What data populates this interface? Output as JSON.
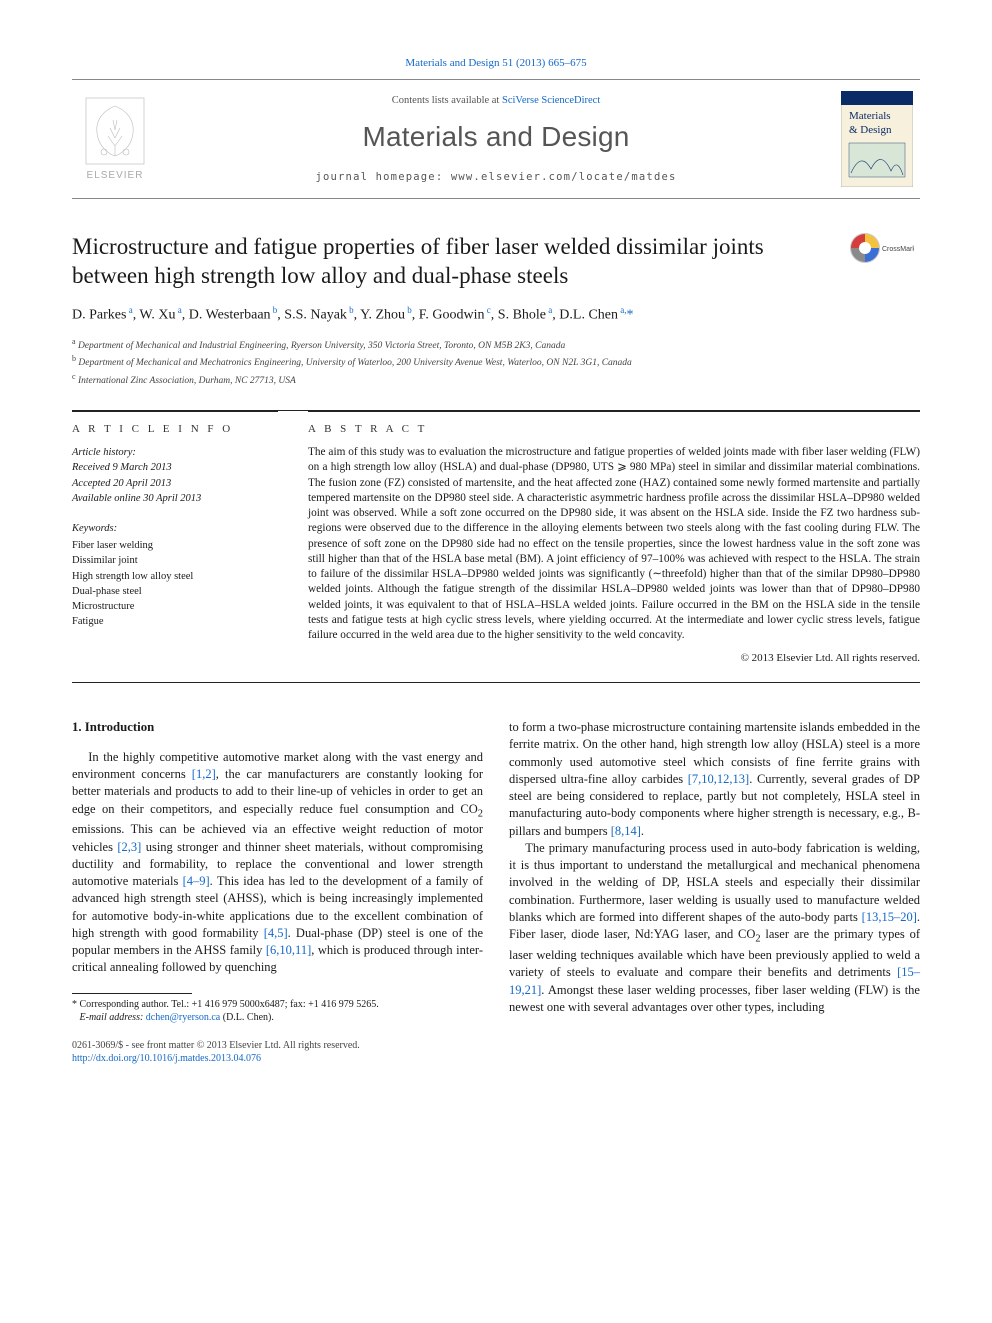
{
  "colors": {
    "link": "#1468c7",
    "text": "#1a1a1a",
    "muted": "#555555",
    "rule": "#222222",
    "bg": "#ffffff",
    "elsevier_orange": "#eb6b0b",
    "cover_blue": "#0b2b66",
    "cover_cream": "#f6f0dc",
    "crossmark_ring_outer": "#c9c9c9",
    "crossmark_red": "#d53d3d",
    "crossmark_yellow": "#f4c23c",
    "crossmark_blue": "#3a6fd6",
    "crossmark_grey": "#8a8a8a"
  },
  "typography": {
    "body_family": "Times New Roman, serif",
    "title_pt": 23,
    "journal_pt": 28,
    "body_pt": 12.5,
    "abstract_pt": 11.3,
    "small_pt": 10.5
  },
  "citation": {
    "prefix": "",
    "link_text": "Materials and Design 51 (2013) 665–675"
  },
  "header": {
    "contents_prefix": "Contents lists available at ",
    "contents_link": "SciVerse ScienceDirect",
    "journal": "Materials and Design",
    "homepage_prefix": "journal homepage: ",
    "homepage_url": "www.elsevier.com/locate/matdes"
  },
  "cover_thumb": {
    "line1": "Materials",
    "line2": "& Design"
  },
  "crossmark_label": "CrossMark",
  "title": "Microstructure and fatigue properties of fiber laser welded dissimilar joints between high strength low alloy and dual-phase steels",
  "authors_html": "D. Parkes<sup> a</sup>, W. Xu<sup> a</sup>, D. Westerbaan<sup> b</sup>, S.S. Nayak<sup> b</sup>, Y. Zhou<sup> b</sup>, F. Goodwin<sup> c</sup>, S. Bhole<sup> a</sup>, D.L. Chen<sup> a,</sup><a href=\"#\">*</a>",
  "affiliations": [
    {
      "sup": "a",
      "text": "Department of Mechanical and Industrial Engineering, Ryerson University, 350 Victoria Street, Toronto, ON M5B 2K3, Canada"
    },
    {
      "sup": "b",
      "text": "Department of Mechanical and Mechatronics Engineering, University of Waterloo, 200 University Avenue West, Waterloo, ON N2L 3G1, Canada"
    },
    {
      "sup": "c",
      "text": "International Zinc Association, Durham, NC 27713, USA"
    }
  ],
  "article_info": {
    "head": "A R T I C L E   I N F O",
    "history_label": "Article history:",
    "history": [
      "Received 9 March 2013",
      "Accepted 20 April 2013",
      "Available online 30 April 2013"
    ],
    "keywords_label": "Keywords:",
    "keywords": [
      "Fiber laser welding",
      "Dissimilar joint",
      "High strength low alloy steel",
      "Dual-phase steel",
      "Microstructure",
      "Fatigue"
    ]
  },
  "abstract": {
    "head": "A B S T R A C T",
    "text": "The aim of this study was to evaluation the microstructure and fatigue properties of welded joints made with fiber laser welding (FLW) on a high strength low alloy (HSLA) and dual-phase (DP980, UTS ⩾ 980 MPa) steel in similar and dissimilar material combinations. The fusion zone (FZ) consisted of martensite, and the heat affected zone (HAZ) contained some newly formed martensite and partially tempered martensite on the DP980 steel side. A characteristic asymmetric hardness profile across the dissimilar HSLA–DP980 welded joint was observed. While a soft zone occurred on the DP980 side, it was absent on the HSLA side. Inside the FZ two hardness sub-regions were observed due to the difference in the alloying elements between two steels along with the fast cooling during FLW. The presence of soft zone on the DP980 side had no effect on the tensile properties, since the lowest hardness value in the soft zone was still higher than that of the HSLA base metal (BM). A joint efficiency of 97–100% was achieved with respect to the HSLA. The strain to failure of the dissimilar HSLA–DP980 welded joints was significantly (∼threefold) higher than that of the similar DP980–DP980 welded joints. Although the fatigue strength of the dissimilar HSLA–DP980 welded joints was lower than that of DP980–DP980 welded joints, it was equivalent to that of HSLA–HSLA welded joints. Failure occurred in the BM on the HSLA side in the tensile tests and fatigue tests at high cyclic stress levels, where yielding occurred. At the intermediate and lower cyclic stress levels, fatigue failure occurred in the weld area due to the higher sensitivity to the weld concavity.",
    "copyright": "© 2013 Elsevier Ltd. All rights reserved."
  },
  "section1": {
    "heading": "1. Introduction",
    "col1_para": "In the highly competitive automotive market along with the vast energy and environment concerns <a href=\"#\">[1,2]</a>, the car manufacturers are constantly looking for better materials and products to add to their line-up of vehicles in order to get an edge on their competitors, and especially reduce fuel consumption and CO<sub>2</sub> emissions. This can be achieved via an effective weight reduction of motor vehicles <a href=\"#\">[2,3]</a> using stronger and thinner sheet materials, without compromising ductility and formability, to replace the conventional and lower strength automotive materials <a href=\"#\">[4–9]</a>. This idea has led to the development of a family of advanced high strength steel (AHSS), which is being increasingly implemented for automotive body-in-white applications due to the excellent combination of high strength with good formability <a href=\"#\">[4,5]</a>. Dual-phase (DP) steel is one of the popular members in the AHSS family <a href=\"#\">[6,10,11]</a>, which is produced through inter-critical annealing followed by quenching",
    "col2_para1": "to form a two-phase microstructure containing martensite islands embedded in the ferrite matrix. On the other hand, high strength low alloy (HSLA) steel is a more commonly used automotive steel which consists of fine ferrite grains with dispersed ultra-fine alloy carbides <a href=\"#\">[7,10,12,13]</a>. Currently, several grades of DP steel are being considered to replace, partly but not completely, HSLA steel in manufacturing auto-body components where higher strength is necessary, e.g., B-pillars and bumpers <a href=\"#\">[8,14]</a>.",
    "col2_para2": "The primary manufacturing process used in auto-body fabrication is welding, it is thus important to understand the metallurgical and mechanical phenomena involved in the welding of DP, HSLA steels and especially their dissimilar combination. Furthermore, laser welding is usually used to manufacture welded blanks which are formed into different shapes of the auto-body parts <a href=\"#\">[13,15–20]</a>. Fiber laser, diode laser, Nd:YAG laser, and CO<sub>2</sub> laser are the primary types of laser welding techniques available which have been previously applied to weld a variety of steels to evaluate and compare their benefits and detriments <a href=\"#\">[15–19,21]</a>. Amongst these laser welding processes, fiber laser welding (FLW) is the newest one with several advantages over other types, including"
  },
  "footnote": {
    "marker": "*",
    "text_prefix": "Corresponding author. Tel.: +1 416 979 5000x6487; fax: +1 416 979 5265.",
    "email_label": "E-mail address:",
    "email": "dchen@ryerson.ca",
    "email_suffix": "(D.L. Chen)."
  },
  "page_footer": {
    "line1": "0261-3069/$ - see front matter © 2013 Elsevier Ltd. All rights reserved.",
    "doi": "http://dx.doi.org/10.1016/j.matdes.2013.04.076"
  }
}
